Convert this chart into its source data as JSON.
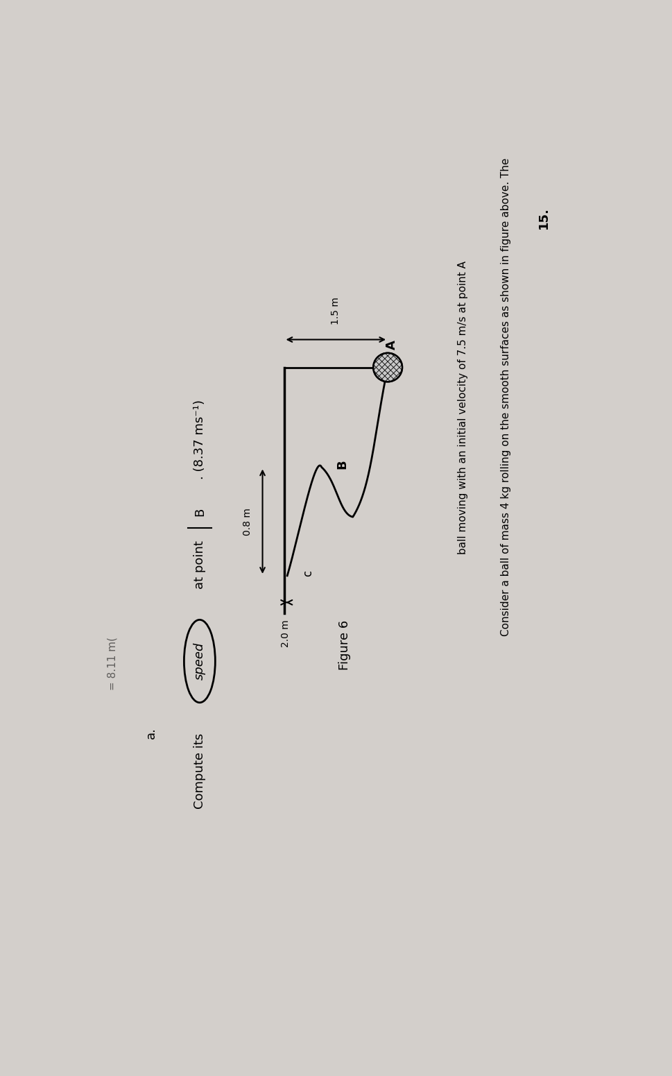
{
  "bg_color": "#d3cfcb",
  "text_color": "#000000",
  "question_number": "15.",
  "problem_text_line1": "Consider a ball of mass 4 kg rolling on the smooth surfaces as shown in figure above. The",
  "problem_text_line2": "ball moving with an initial velocity of 7.5 m/s at point A",
  "sub_question_label": "a.",
  "figure_caption": "Figure 6",
  "dim_1_5": "1.5 m",
  "dim_0_8": "0.8 m",
  "dim_2_0": "2.0 m",
  "label_A": "A",
  "label_B": "B",
  "label_C": "c",
  "answer_partial": "= 8.11 m("
}
